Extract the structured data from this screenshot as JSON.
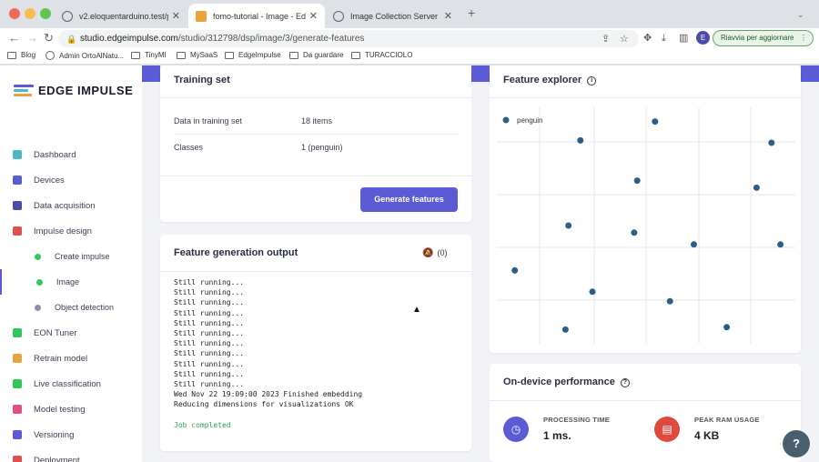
{
  "browser": {
    "tabs": [
      {
        "title": "v2.eloquentarduino.test/posts",
        "favicon_color": "#5f6368"
      },
      {
        "title": "fomo-tutorial - Image - Edge I",
        "favicon_color": "#e8a33b"
      },
      {
        "title": "Image Collection Server",
        "favicon_color": "#5f6368"
      }
    ],
    "url_domain": "studio.edgeimpulse.com",
    "url_path": "/studio/312798/dsp/image/3/generate-features",
    "avatar_letter": "E",
    "update_button": "Riavvia per aggiornare",
    "bookmarks": [
      "Blog",
      "Admin OrtoAlNatu...",
      "TinyMl",
      "MySaaS",
      "EdgeImpulse",
      "Da guardare",
      "TURACCIOLO"
    ]
  },
  "sidebar": {
    "logo_text": "EDGE IMPULSE",
    "items": [
      {
        "label": "Dashboard",
        "icon": "monitor-icon",
        "color": "#4fb6c6"
      },
      {
        "label": "Devices",
        "icon": "chip-icon",
        "color": "#5b5bd6"
      },
      {
        "label": "Data acquisition",
        "icon": "database-icon",
        "color": "#4b4ba8"
      },
      {
        "label": "Impulse design",
        "icon": "pulse-icon",
        "color": "#e05050"
      },
      {
        "label": "Create impulse",
        "icon": "dot-icon",
        "color": "#34c759",
        "sub": true
      },
      {
        "label": "Image",
        "icon": "dot-icon",
        "color": "#34c759",
        "sub": true,
        "active": true
      },
      {
        "label": "Object detection",
        "icon": "dot-icon",
        "color": "#8a8fa3",
        "sub": true
      },
      {
        "label": "EON Tuner",
        "icon": "target-icon",
        "color": "#34c759"
      },
      {
        "label": "Retrain model",
        "icon": "shuffle-icon",
        "color": "#e8a33b"
      },
      {
        "label": "Live classification",
        "icon": "branch-icon",
        "color": "#34c759"
      },
      {
        "label": "Model testing",
        "icon": "clipboard-icon",
        "color": "#e05080"
      },
      {
        "label": "Versioning",
        "icon": "git-icon",
        "color": "#5b5bd6"
      },
      {
        "label": "Deployment",
        "icon": "box-icon",
        "color": "#e05050"
      }
    ]
  },
  "training_set": {
    "title": "Training set",
    "rows": [
      {
        "label": "Data in training set",
        "value": "18 items"
      },
      {
        "label": "Classes",
        "value": "1 (penguin)"
      }
    ],
    "button": "Generate features"
  },
  "feature_output": {
    "title": "Feature generation output",
    "notifications": "(0)",
    "log": [
      "Still running...",
      "Still running...",
      "Still running...",
      "Still running...",
      "Still running...",
      "Still running...",
      "Still running...",
      "Still running...",
      "Still running...",
      "Still running...",
      "Still running...",
      "Wed Nov 22 19:09:00 2023 Finished embedding",
      "Reducing dimensions for visualizations OK",
      "",
      "Job completed"
    ]
  },
  "feature_explorer": {
    "title": "Feature explorer"
  },
  "chart_data": {
    "type": "scatter",
    "grid": true,
    "legend": "top-left",
    "xlim": [
      0,
      1
    ],
    "ylim": [
      0,
      1
    ],
    "series": [
      {
        "name": "penguin",
        "color": "#2a5f8a",
        "points": [
          [
            0.53,
            0.94
          ],
          [
            0.28,
            0.86
          ],
          [
            0.92,
            0.85
          ],
          [
            0.47,
            0.69
          ],
          [
            0.87,
            0.66
          ],
          [
            0.24,
            0.5
          ],
          [
            0.46,
            0.47
          ],
          [
            0.66,
            0.42
          ],
          [
            0.95,
            0.42
          ],
          [
            0.06,
            0.31
          ],
          [
            0.32,
            0.22
          ],
          [
            0.58,
            0.18
          ],
          [
            0.23,
            0.06
          ],
          [
            0.77,
            0.07
          ]
        ]
      }
    ]
  },
  "performance": {
    "title": "On-device performance",
    "metrics": [
      {
        "label": "PROCESSING TIME",
        "value": "1 ms.",
        "color": "#5b5bd6",
        "icon": "clock-icon"
      },
      {
        "label": "PEAK RAM USAGE",
        "value": "4 KB",
        "color": "#e04a3c",
        "icon": "ram-icon"
      }
    ]
  }
}
